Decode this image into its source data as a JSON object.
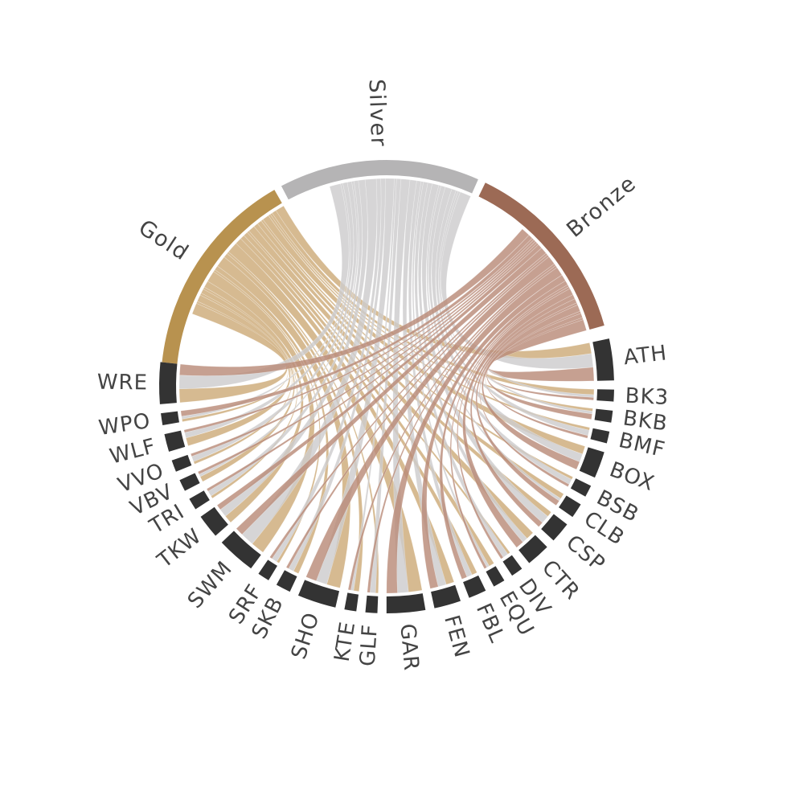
{
  "chart_data": {
    "type": "chord",
    "colors": {
      "Gold": "#b8924f",
      "Silver": "#b5b4b5",
      "Bronze": "#9c6a55",
      "sport": "#333333",
      "ribbon_Gold": "#cdab79",
      "ribbon_Silver": "#cdcccd",
      "ribbon_Bronze": "#b98b79"
    },
    "medal_groups": [
      {
        "name": "Gold",
        "value": 87
      },
      {
        "name": "Silver",
        "value": 83
      },
      {
        "name": "Bronze",
        "value": 78
      }
    ],
    "sport_groups": [
      {
        "name": "ATH",
        "value": 14
      },
      {
        "name": "BK3",
        "value": 4
      },
      {
        "name": "BKB",
        "value": 4
      },
      {
        "name": "BMF",
        "value": 4
      },
      {
        "name": "BOX",
        "value": 9
      },
      {
        "name": "BSB",
        "value": 4
      },
      {
        "name": "CLB",
        "value": 5
      },
      {
        "name": "CSP",
        "value": 7
      },
      {
        "name": "CTR",
        "value": 8
      },
      {
        "name": "DIV",
        "value": 4
      },
      {
        "name": "EQU",
        "value": 4
      },
      {
        "name": "FBL",
        "value": 6
      },
      {
        "name": "FEN",
        "value": 9
      },
      {
        "name": "GAR",
        "value": 13
      },
      {
        "name": "GLF",
        "value": 4
      },
      {
        "name": "KTE",
        "value": 4
      },
      {
        "name": "SHO",
        "value": 13
      },
      {
        "name": "SKB",
        "value": 5
      },
      {
        "name": "SRF",
        "value": 4
      },
      {
        "name": "SWM",
        "value": 13
      },
      {
        "name": "TKW",
        "value": 8
      },
      {
        "name": "TRI",
        "value": 4
      },
      {
        "name": "VBV",
        "value": 4
      },
      {
        "name": "VVO",
        "value": 4
      },
      {
        "name": "WLF",
        "value": 6
      },
      {
        "name": "WPO",
        "value": 4
      },
      {
        "name": "WRE",
        "value": 14
      }
    ],
    "links": [
      {
        "sport": "ATH",
        "Gold": 4,
        "Silver": 5,
        "Bronze": 5
      },
      {
        "sport": "BK3",
        "Gold": 2,
        "Silver": 1,
        "Bronze": 1
      },
      {
        "sport": "BKB",
        "Gold": 1,
        "Silver": 1,
        "Bronze": 2
      },
      {
        "sport": "BMF",
        "Gold": 1,
        "Silver": 2,
        "Bronze": 1
      },
      {
        "sport": "BOX",
        "Gold": 3,
        "Silver": 3,
        "Bronze": 3
      },
      {
        "sport": "BSB",
        "Gold": 1,
        "Silver": 2,
        "Bronze": 1
      },
      {
        "sport": "CLB",
        "Gold": 2,
        "Silver": 1,
        "Bronze": 2
      },
      {
        "sport": "CSP",
        "Gold": 2,
        "Silver": 3,
        "Bronze": 2
      },
      {
        "sport": "CTR",
        "Gold": 3,
        "Silver": 2,
        "Bronze": 3
      },
      {
        "sport": "DIV",
        "Gold": 1,
        "Silver": 2,
        "Bronze": 1
      },
      {
        "sport": "EQU",
        "Gold": 2,
        "Silver": 1,
        "Bronze": 1
      },
      {
        "sport": "FBL",
        "Gold": 2,
        "Silver": 2,
        "Bronze": 2
      },
      {
        "sport": "FEN",
        "Gold": 3,
        "Silver": 3,
        "Bronze": 3
      },
      {
        "sport": "GAR",
        "Gold": 5,
        "Silver": 4,
        "Bronze": 4
      },
      {
        "sport": "GLF",
        "Gold": 1,
        "Silver": 2,
        "Bronze": 1
      },
      {
        "sport": "KTE",
        "Gold": 2,
        "Silver": 1,
        "Bronze": 1
      },
      {
        "sport": "SHO",
        "Gold": 5,
        "Silver": 4,
        "Bronze": 4
      },
      {
        "sport": "SKB",
        "Gold": 2,
        "Silver": 2,
        "Bronze": 1
      },
      {
        "sport": "SRF",
        "Gold": 1,
        "Silver": 2,
        "Bronze": 1
      },
      {
        "sport": "SWM",
        "Gold": 5,
        "Silver": 5,
        "Bronze": 3
      },
      {
        "sport": "TKW",
        "Gold": 3,
        "Silver": 3,
        "Bronze": 2
      },
      {
        "sport": "TRI",
        "Gold": 1,
        "Silver": 2,
        "Bronze": 1
      },
      {
        "sport": "VBV",
        "Gold": 2,
        "Silver": 1,
        "Bronze": 1
      },
      {
        "sport": "VVO",
        "Gold": 1,
        "Silver": 2,
        "Bronze": 1
      },
      {
        "sport": "WLF",
        "Gold": 3,
        "Silver": 2,
        "Bronze": 1
      },
      {
        "sport": "WPO",
        "Gold": 1,
        "Silver": 1,
        "Bronze": 2
      },
      {
        "sport": "WRE",
        "Gold": 5,
        "Silver": 5,
        "Bronze": 4
      }
    ]
  }
}
